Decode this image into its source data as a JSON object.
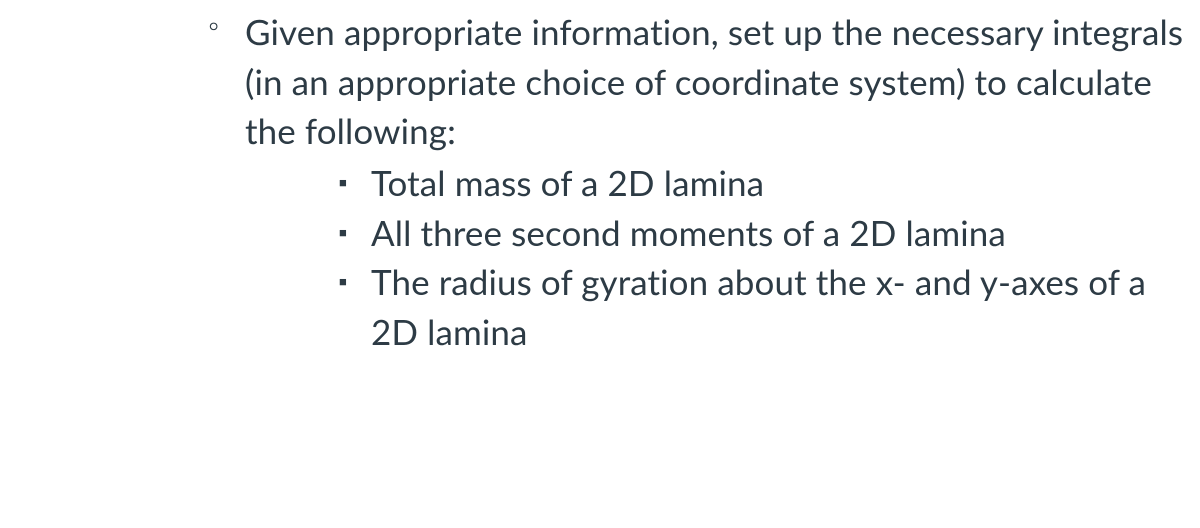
{
  "content": {
    "outerItem": "Given appropriate information, set up the necessary integrals (in an appropriate choice of coordinate system) to calculate the following:",
    "innerItems": [
      "Total mass of a 2D lamina",
      "All three second moments of a 2D lamina",
      "The radius of gyration about the x- and y-axes of a 2D lamina"
    ]
  },
  "style": {
    "background": "#ffffff",
    "textColor": "#2d3b45",
    "fontSize": 35,
    "lineHeight": 1.42
  }
}
